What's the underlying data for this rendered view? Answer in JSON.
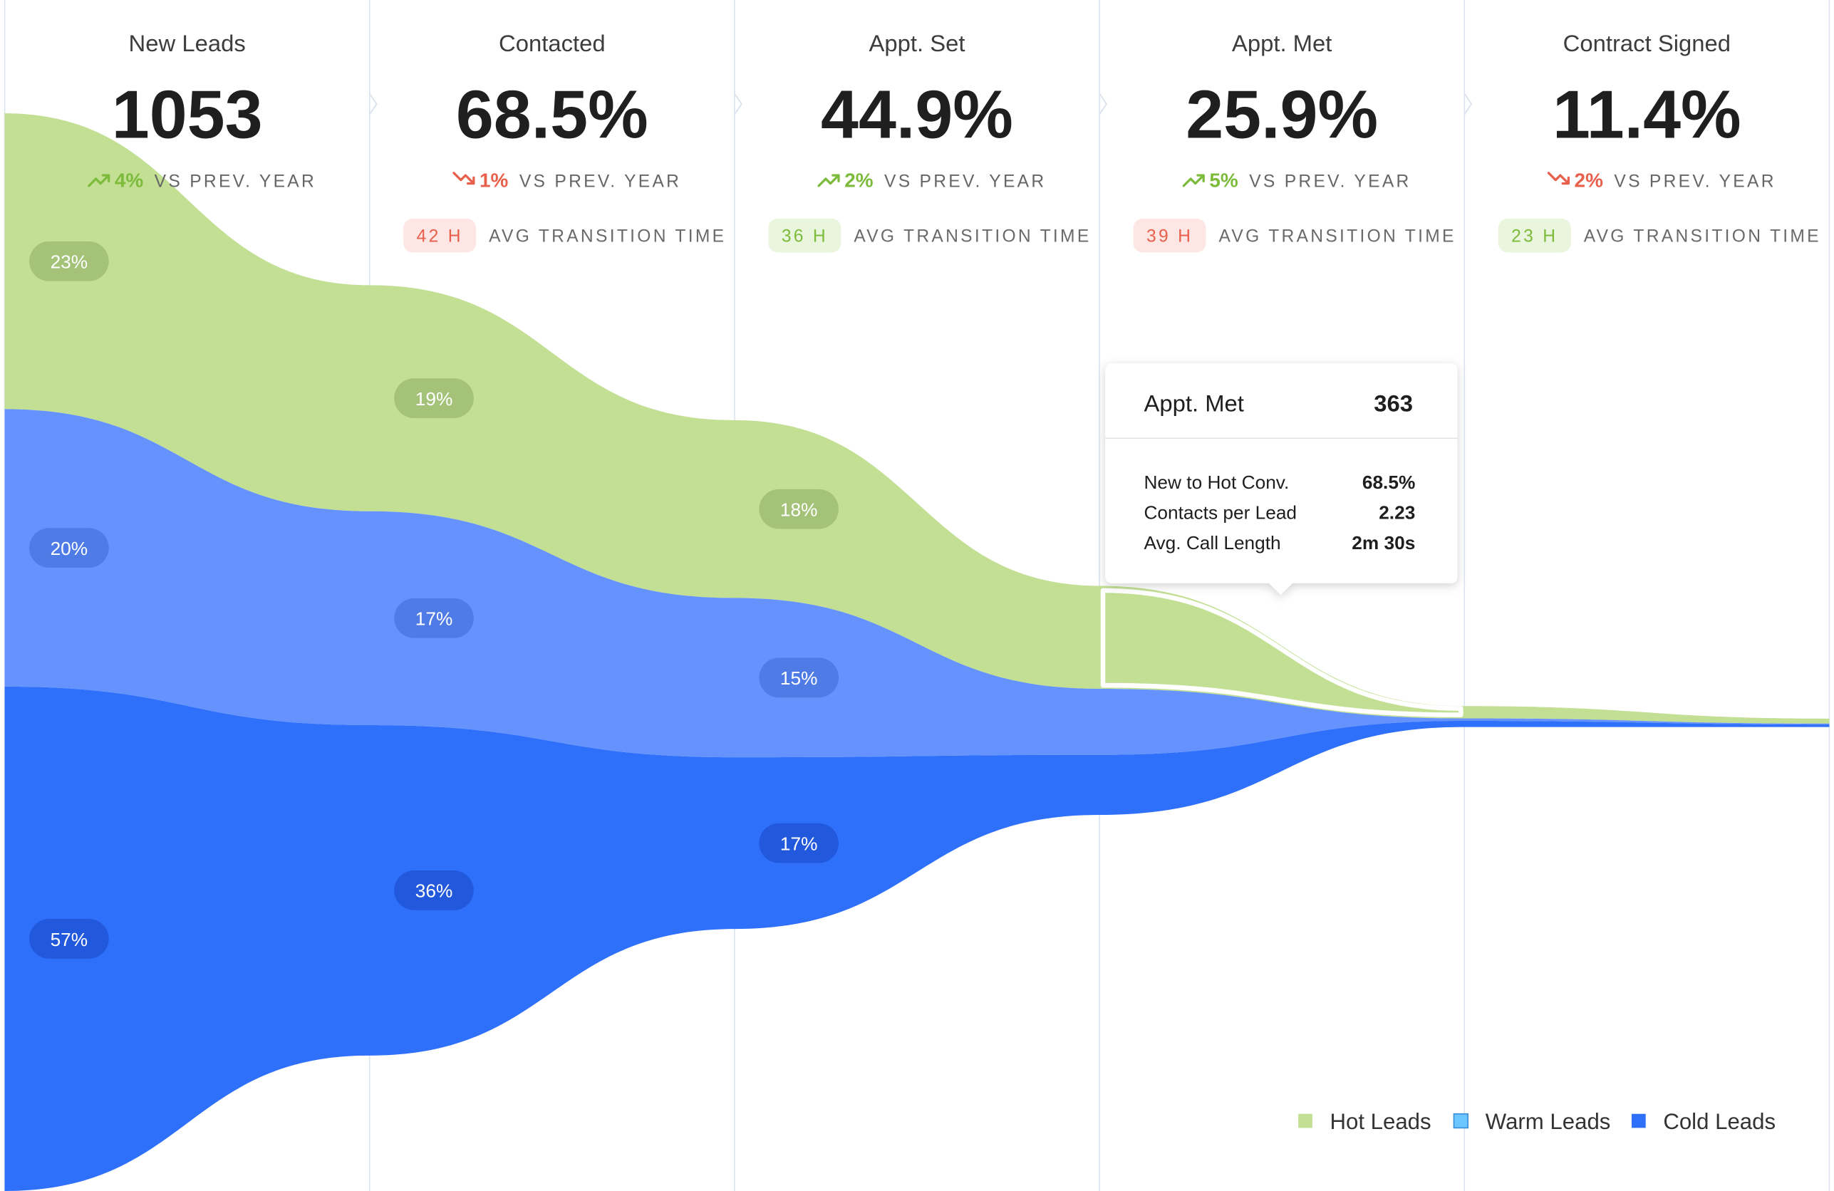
{
  "colors": {
    "hot": "#c2df94",
    "warm": "#6592fc",
    "cold": "#2f70fb",
    "positive": "#7dbb3c",
    "negative": "#e8604c",
    "positive_badge_bg": "#e9f5dc",
    "negative_badge_bg": "#fde6e3",
    "divider": "#dde4ee",
    "legend_warm_swatch": "#6cc6ff"
  },
  "stages": [
    {
      "title": "New Leads",
      "value": "1053",
      "change": "4%",
      "trend": "up",
      "vs_label": "VS PREV. YEAR",
      "avg_time": null
    },
    {
      "title": "Contacted",
      "value": "68.5%",
      "change": "1%",
      "trend": "down",
      "vs_label": "VS PREV. YEAR",
      "avg_time": "42 H",
      "avg_time_status": "negative",
      "avg_label": "AVG TRANSITION TIME"
    },
    {
      "title": "Appt. Set",
      "value": "44.9%",
      "change": "2%",
      "trend": "up",
      "vs_label": "VS PREV. YEAR",
      "avg_time": "36 H",
      "avg_time_status": "positive",
      "avg_label": "AVG TRANSITION TIME"
    },
    {
      "title": "Appt. Met",
      "value": "25.9%",
      "change": "5%",
      "trend": "up",
      "vs_label": "VS PREV. YEAR",
      "avg_time": "39 H",
      "avg_time_status": "negative",
      "avg_label": "AVG TRANSITION TIME"
    },
    {
      "title": "Contract Signed",
      "value": "11.4%",
      "change": "2%",
      "trend": "down",
      "vs_label": "VS PREV. YEAR",
      "avg_time": "23 H",
      "avg_time_status": "positive",
      "avg_label": "AVG TRANSITION TIME"
    }
  ],
  "chart_data": {
    "type": "area",
    "x": [
      "New Leads",
      "Contacted",
      "Appt. Set",
      "Appt. Met",
      "Contract Signed"
    ],
    "series": [
      {
        "name": "Hot Leads",
        "values": [
          23,
          19,
          18,
          12,
          2
        ],
        "labels": [
          "23%",
          "19%",
          "18%",
          null,
          null
        ]
      },
      {
        "name": "Warm Leads",
        "values": [
          20,
          17,
          15,
          6,
          0.4
        ],
        "labels": [
          "20%",
          "17%",
          "15%",
          null,
          null
        ]
      },
      {
        "name": "Cold Leads",
        "values": [
          57,
          36,
          17,
          5,
          1
        ],
        "labels": [
          "57%",
          "36%",
          "17%",
          null,
          null
        ]
      }
    ],
    "legend": [
      "Hot Leads",
      "Warm Leads",
      "Cold Leads"
    ],
    "legend_position": "bottom-right",
    "highlighted_stage": "Appt. Met",
    "highlighted_series": "Hot Leads"
  },
  "tooltip": {
    "title": "Appt. Met",
    "value": "363",
    "rows": [
      {
        "label": "New to Hot Conv.",
        "value": "68.5%"
      },
      {
        "label": "Contacts per Lead",
        "value": "2.23"
      },
      {
        "label": "Avg. Call Length",
        "value": "2m 30s"
      }
    ]
  }
}
